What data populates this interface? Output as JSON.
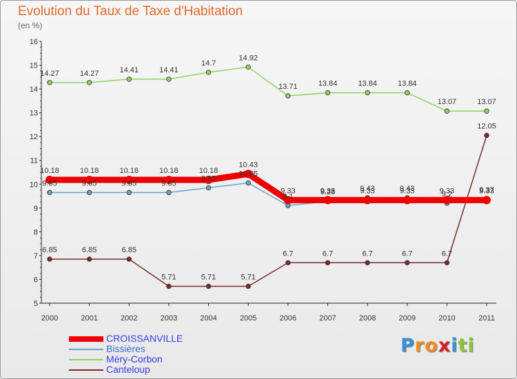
{
  "title": "Evolution du Taux de Taxe d'Habitation",
  "subtitle": "(en %)",
  "logo": {
    "text": "Proxiti",
    "letters": [
      "P",
      "r",
      "o",
      "x",
      "i",
      "t",
      "i"
    ],
    "colors": [
      "#3a8fd8",
      "#f08c1c",
      "#f08c1c",
      "#d8201e",
      "#3a8fd8",
      "#8cc63f",
      "#8cc63f"
    ]
  },
  "chart_data": {
    "type": "line",
    "title": "Evolution du Taux de Taxe d'Habitation",
    "ylabel": "(en %)",
    "x": [
      "2000",
      "2001",
      "2002",
      "2003",
      "2004",
      "2005",
      "2006",
      "2007",
      "2008",
      "2009",
      "2010",
      "2011"
    ],
    "ylim": [
      5,
      16
    ],
    "yticks": [
      5,
      6,
      7,
      8,
      9,
      10,
      11,
      12,
      13,
      14,
      15,
      16
    ],
    "grid": false,
    "legend": "bottom-left",
    "series": [
      {
        "name": "CROISSANVILLE",
        "color": "#ee0000",
        "values": [
          10.18,
          10.18,
          10.18,
          10.18,
          10.18,
          10.43,
          9.33,
          9.33,
          9.33,
          9.33,
          9.33,
          9.33
        ],
        "labels": [
          "10.18",
          "10.18",
          "10.18",
          "10.18",
          "10.18",
          "10.43",
          "9.33",
          "9.33",
          "9.33",
          "9.33",
          "9.33",
          "9.33"
        ]
      },
      {
        "name": "Bissières",
        "color": "#6aa0d0",
        "values": [
          9.65,
          9.65,
          9.65,
          9.65,
          9.85,
          10.05,
          9.1,
          9.28,
          9.43,
          9.43,
          9.2,
          9.37
        ],
        "labels": [
          "9.65",
          "9.65",
          "9.65",
          "9.65",
          "9.85",
          "10.05",
          "9.1",
          "9.28",
          "9.43",
          "9.43",
          "9.2",
          "9.37"
        ]
      },
      {
        "name": "Méry-Corbon",
        "color": "#90d060",
        "values": [
          14.27,
          14.27,
          14.41,
          14.41,
          14.7,
          14.92,
          13.71,
          13.84,
          13.84,
          13.84,
          13.07,
          13.07
        ],
        "labels": [
          "14.27",
          "14.27",
          "14.41",
          "14.41",
          "14.7",
          "14.92",
          "13.71",
          "13.84",
          "13.84",
          "13.84",
          "13.07",
          "13.07"
        ]
      },
      {
        "name": "Canteloup",
        "color": "#7a2c2c",
        "values": [
          6.85,
          6.85,
          6.85,
          5.71,
          5.71,
          5.71,
          6.7,
          6.7,
          6.7,
          6.7,
          6.7,
          12.05
        ],
        "labels": [
          "6.85",
          "6.85",
          "6.85",
          "5.71",
          "5.71",
          "5.71",
          "6.7",
          "6.7",
          "6.7",
          "6.7",
          "6.7",
          "12.05"
        ]
      }
    ]
  }
}
